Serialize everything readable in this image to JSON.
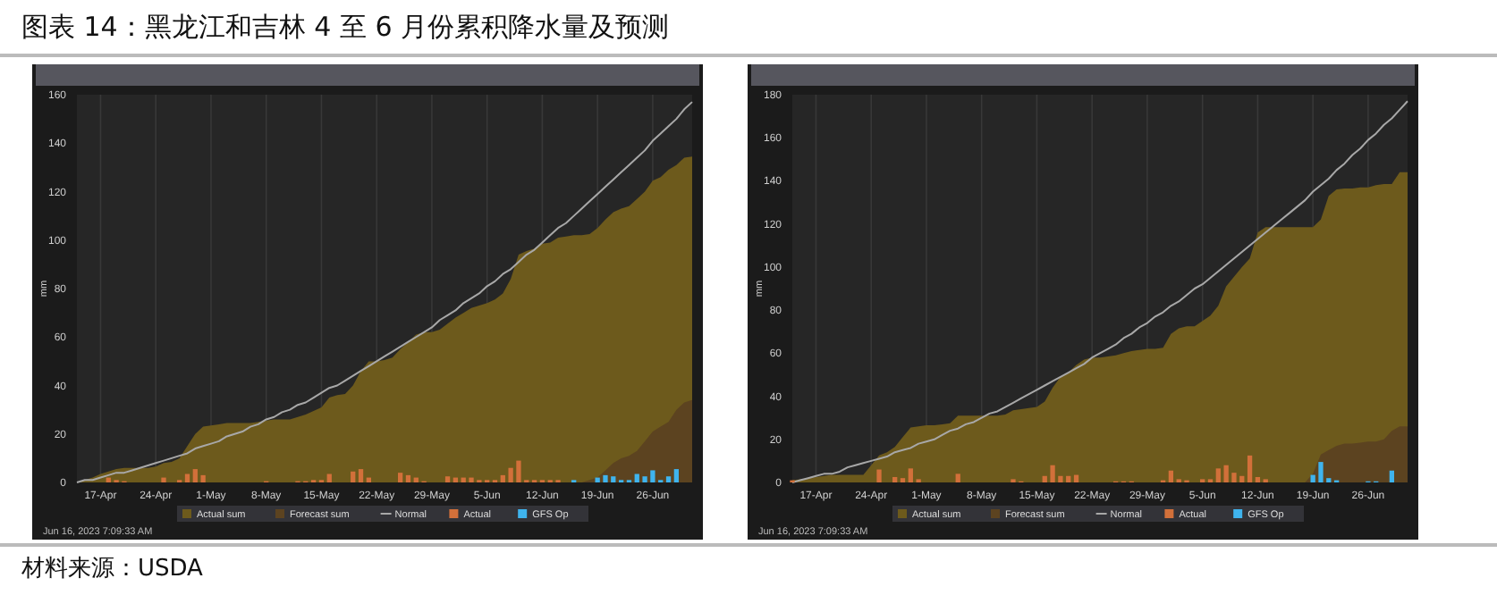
{
  "chart_data": [
    {
      "type": "area",
      "title": "图表 14：黑龙江和吉林 4 至 6 月份累积降水量及预测",
      "ylabel": "mm",
      "ylim": [
        0,
        160
      ],
      "yticks": [
        0,
        20,
        40,
        60,
        80,
        100,
        120,
        140,
        160
      ],
      "grid": "x",
      "legend": "bottom",
      "annotations": [
        "Jun 16, 2023 7:09:33 AM"
      ],
      "categories": [
        null,
        null,
        null,
        "17-Apr",
        null,
        null,
        null,
        null,
        null,
        null,
        "24-Apr",
        null,
        null,
        null,
        null,
        null,
        null,
        "1-May",
        null,
        null,
        null,
        null,
        null,
        null,
        "8-May",
        null,
        null,
        null,
        null,
        null,
        null,
        "15-May",
        null,
        null,
        null,
        null,
        null,
        null,
        "22-May",
        null,
        null,
        null,
        null,
        null,
        null,
        "29-May",
        null,
        null,
        null,
        null,
        null,
        null,
        "5-Jun",
        null,
        null,
        null,
        null,
        null,
        null,
        "12-Jun",
        null,
        null,
        null,
        null,
        null,
        null,
        "19-Jun",
        null,
        null,
        null,
        null,
        null,
        null,
        "26-Jun",
        null,
        null,
        null,
        null,
        null
      ],
      "series": [
        {
          "name": "Actual sum",
          "color": "#6d5a1c",
          "values": [
            0,
            1,
            2,
            3.5,
            4.5,
            5.5,
            6,
            6,
            6,
            6,
            6.5,
            8,
            8.5,
            10,
            15,
            20,
            23,
            23.5,
            24,
            24.5,
            24.5,
            24.5,
            24.5,
            25,
            25.5,
            26,
            26,
            26,
            27,
            28,
            29.5,
            31,
            35,
            36,
            36.5,
            40,
            46,
            50,
            50,
            50.5,
            51.5,
            55,
            58,
            61,
            62,
            62,
            63,
            65.5,
            68,
            70,
            72,
            73,
            74,
            75.5,
            78,
            84,
            94,
            95.5,
            96.5,
            98.5,
            99,
            101,
            101.5,
            102,
            102,
            102.5,
            105,
            108.5,
            111.5,
            113,
            114,
            117,
            120,
            124.5,
            126,
            129,
            131,
            134,
            134.5
          ]
        },
        {
          "name": "Forecast sum",
          "type": "area",
          "color": "#5c4320",
          "values": [
            null,
            null,
            null,
            null,
            null,
            null,
            null,
            null,
            null,
            null,
            null,
            null,
            null,
            null,
            null,
            null,
            null,
            null,
            null,
            null,
            null,
            null,
            null,
            null,
            null,
            null,
            null,
            null,
            null,
            null,
            null,
            null,
            null,
            null,
            null,
            null,
            null,
            null,
            null,
            null,
            null,
            null,
            null,
            null,
            null,
            null,
            null,
            null,
            null,
            null,
            null,
            null,
            null,
            null,
            null,
            null,
            null,
            null,
            null,
            null,
            null,
            null,
            null,
            null,
            0,
            1,
            2,
            5,
            8,
            10,
            11,
            13,
            17,
            21,
            23,
            25,
            30,
            33,
            34
          ]
        },
        {
          "name": "Normal",
          "type": "line",
          "color": "#a8a8a8",
          "values": [
            0,
            1,
            1,
            2,
            3,
            4,
            4,
            5,
            6,
            7,
            8,
            9,
            10,
            11,
            12,
            14,
            15,
            16,
            17,
            19,
            20,
            21,
            23,
            24,
            26,
            27,
            29,
            30,
            32,
            33,
            35,
            37,
            39,
            40,
            42,
            44,
            46,
            48,
            50,
            52,
            54,
            56,
            58,
            60,
            62,
            64,
            67,
            69,
            71,
            74,
            76,
            78,
            81,
            83,
            86,
            88,
            91,
            94,
            96,
            99,
            102,
            105,
            107,
            110,
            113,
            116,
            119,
            122,
            125,
            128,
            131,
            134,
            137,
            141,
            144,
            147,
            150,
            154,
            157
          ]
        },
        {
          "name": "Actual",
          "type": "bar",
          "color": "#d2703a",
          "values": [
            0,
            0,
            0,
            0,
            2,
            1,
            0.5,
            0,
            0,
            0,
            0,
            2,
            0,
            1,
            3.5,
            5.5,
            3,
            0,
            0,
            0,
            0,
            0,
            0,
            0,
            0.5,
            0,
            0,
            0,
            0.5,
            0.5,
            1,
            1,
            3.5,
            0,
            0,
            4.5,
            5.5,
            2,
            0,
            0,
            0,
            4,
            3,
            2,
            0.5,
            0,
            0,
            2.5,
            2,
            2,
            2,
            1,
            1,
            1,
            3,
            6,
            9,
            1,
            1,
            1,
            1,
            1,
            0,
            0,
            0,
            0,
            0,
            0,
            0,
            0,
            0,
            0,
            0,
            0,
            0,
            0,
            0,
            0,
            0
          ]
        },
        {
          "name": "GFS Op",
          "type": "bar",
          "color": "#3fb4ee",
          "values": [
            0,
            0,
            0,
            0,
            0,
            0,
            0,
            0,
            0,
            0,
            0,
            0,
            0,
            0,
            0,
            0,
            0,
            0,
            0,
            0,
            0,
            0,
            0,
            0,
            0,
            0,
            0,
            0,
            0,
            0,
            0,
            0,
            0,
            0,
            0,
            0,
            0,
            0,
            0,
            0,
            0,
            0,
            0,
            0,
            0,
            0,
            0,
            0,
            0,
            0,
            0,
            0,
            0,
            0,
            0,
            0,
            0,
            0,
            0,
            0,
            0,
            0,
            0,
            1,
            0,
            0,
            2,
            3,
            2.5,
            1,
            1,
            3.5,
            2.5,
            5,
            1,
            2.5,
            5.5,
            0,
            0
          ]
        }
      ]
    },
    {
      "type": "area",
      "ylabel": "mm",
      "ylim": [
        0,
        180
      ],
      "yticks": [
        0,
        20,
        40,
        60,
        80,
        100,
        120,
        140,
        160,
        180
      ],
      "grid": "x",
      "legend": "bottom",
      "annotations": [
        "Jun 16, 2023 7:09:33 AM",
        "材料来源：USDA"
      ],
      "categories": [
        null,
        null,
        null,
        "17-Apr",
        null,
        null,
        null,
        null,
        null,
        null,
        "24-Apr",
        null,
        null,
        null,
        null,
        null,
        null,
        "1-May",
        null,
        null,
        null,
        null,
        null,
        null,
        "8-May",
        null,
        null,
        null,
        null,
        null,
        null,
        "15-May",
        null,
        null,
        null,
        null,
        null,
        null,
        "22-May",
        null,
        null,
        null,
        null,
        null,
        null,
        "29-May",
        null,
        null,
        null,
        null,
        null,
        null,
        "5-Jun",
        null,
        null,
        null,
        null,
        null,
        null,
        "12-Jun",
        null,
        null,
        null,
        null,
        null,
        null,
        "19-Jun",
        null,
        null,
        null,
        null,
        null,
        null,
        "26-Jun",
        null,
        null,
        null,
        null,
        null
      ],
      "series": [
        {
          "name": "Actual sum",
          "color": "#6d5a1c",
          "values": [
            1,
            1.5,
            2,
            2.5,
            3,
            3.5,
            3.5,
            3.5,
            3.5,
            3.5,
            8,
            12.5,
            14,
            16.5,
            21,
            25.5,
            26,
            26.5,
            26.5,
            27,
            27.5,
            31,
            31,
            31,
            31,
            31,
            31,
            31.5,
            33.5,
            34,
            34.5,
            35,
            37.5,
            44,
            49,
            51,
            54.5,
            57,
            58,
            58,
            58.5,
            59,
            60,
            61,
            61.5,
            62,
            62,
            62.5,
            69,
            71.5,
            72.5,
            72.5,
            75,
            77.5,
            82,
            91,
            95.5,
            100,
            104,
            116,
            118.5,
            118.5,
            118.5,
            118.5,
            118.5,
            118.5,
            118.5,
            122,
            133,
            136,
            136.5,
            136.5,
            137,
            137,
            138,
            138.5,
            138.5,
            144,
            144
          ]
        },
        {
          "name": "Forecast sum",
          "type": "area",
          "color": "#5c4320",
          "values": [
            null,
            null,
            null,
            null,
            null,
            null,
            null,
            null,
            null,
            null,
            null,
            null,
            null,
            null,
            null,
            null,
            null,
            null,
            null,
            null,
            null,
            null,
            null,
            null,
            null,
            null,
            null,
            null,
            null,
            null,
            null,
            null,
            null,
            null,
            null,
            null,
            null,
            null,
            null,
            null,
            null,
            null,
            null,
            null,
            null,
            null,
            null,
            null,
            null,
            null,
            null,
            null,
            null,
            null,
            null,
            null,
            null,
            null,
            null,
            null,
            null,
            null,
            null,
            null,
            null,
            0,
            4,
            13,
            15,
            17,
            18,
            18,
            18.5,
            19,
            19,
            20,
            24,
            26,
            26
          ]
        },
        {
          "name": "Normal",
          "type": "line",
          "color": "#a8a8a8",
          "values": [
            0,
            1,
            2,
            3,
            4,
            4,
            5,
            7,
            8,
            9,
            10,
            11,
            12,
            14,
            15,
            16,
            18,
            19,
            20,
            22,
            24,
            25,
            27,
            28,
            30,
            32,
            33,
            35,
            37,
            39,
            41,
            43,
            45,
            47,
            49,
            51,
            53,
            55,
            58,
            60,
            62,
            64,
            67,
            69,
            72,
            74,
            77,
            79,
            82,
            84,
            87,
            90,
            92,
            95,
            98,
            101,
            104,
            107,
            110,
            113,
            116,
            119,
            122,
            125,
            128,
            131,
            135,
            138,
            141,
            145,
            148,
            152,
            155,
            159,
            162,
            166,
            169,
            173,
            177
          ]
        },
        {
          "name": "Actual",
          "type": "bar",
          "color": "#d2703a",
          "values": [
            1,
            0,
            0,
            0,
            0,
            0,
            0,
            0,
            0,
            0,
            0,
            6,
            0,
            2.5,
            2,
            6.5,
            1.5,
            0,
            0,
            0,
            0,
            4,
            0,
            0,
            0,
            0,
            0,
            0,
            1.5,
            0.5,
            0,
            0,
            3,
            8,
            3,
            3,
            3.5,
            0,
            0,
            0,
            0,
            0.5,
            0.5,
            0.5,
            0,
            0,
            0,
            1,
            5.5,
            1.5,
            1,
            0,
            1.5,
            1.5,
            6.5,
            8,
            4.5,
            3,
            12.5,
            2.5,
            1.5,
            0,
            0,
            0,
            0,
            0,
            0,
            0,
            0,
            0,
            0,
            0,
            0,
            0,
            0,
            0,
            0,
            0,
            0
          ]
        },
        {
          "name": "GFS Op",
          "type": "bar",
          "color": "#3fb4ee",
          "values": [
            0,
            0,
            0,
            0,
            0,
            0,
            0,
            0,
            0,
            0,
            0,
            0,
            0,
            0,
            0,
            0,
            0,
            0,
            0,
            0,
            0,
            0,
            0,
            0,
            0,
            0,
            0,
            0,
            0,
            0,
            0,
            0,
            0,
            0,
            0,
            0,
            0,
            0,
            0,
            0,
            0,
            0,
            0,
            0,
            0,
            0,
            0,
            0,
            0,
            0,
            0,
            0,
            0,
            0,
            0,
            0,
            0,
            0,
            0,
            0,
            0,
            0,
            0,
            0,
            0,
            0,
            3.5,
            9.5,
            2,
            1,
            0,
            0,
            0,
            0.5,
            0.5,
            0,
            5.5,
            0,
            0
          ]
        }
      ]
    }
  ]
}
